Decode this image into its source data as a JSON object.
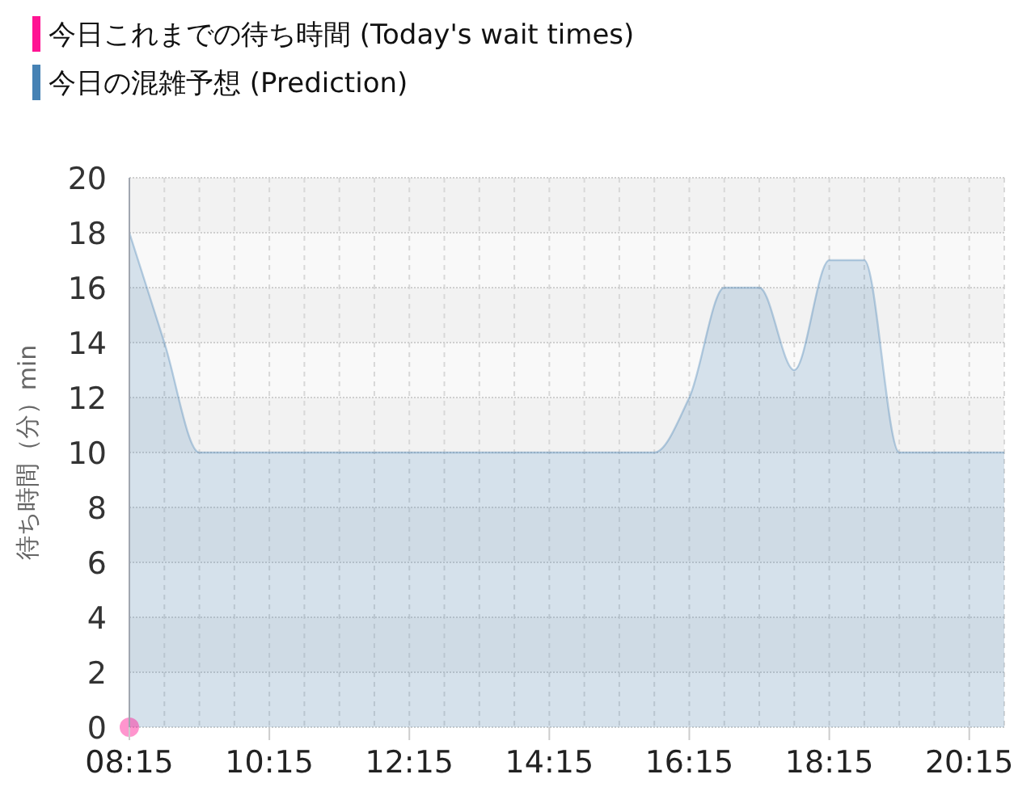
{
  "chart_data": {
    "type": "area",
    "ylabel": "待ち時間（分）min",
    "legend": "top left",
    "grid": true,
    "xlim": [
      8.25,
      20.75
    ],
    "ylim": [
      0,
      20
    ],
    "xticks": [
      {
        "value": 8.25,
        "label": "08:15"
      },
      {
        "value": 10.25,
        "label": "10:15"
      },
      {
        "value": 12.25,
        "label": "12:15"
      },
      {
        "value": 14.25,
        "label": "14:15"
      },
      {
        "value": 16.25,
        "label": "16:15"
      },
      {
        "value": 18.25,
        "label": "18:15"
      },
      {
        "value": 20.25,
        "label": "20:15"
      }
    ],
    "yticks": [
      0,
      2,
      4,
      6,
      8,
      10,
      12,
      14,
      16,
      18,
      20
    ],
    "series": [
      {
        "name": "今日これまでの待ち時間 (Today's wait times)",
        "type": "scatter",
        "marker": "circle",
        "color": "#ff1493",
        "x": [
          8.25
        ],
        "values": [
          0
        ]
      },
      {
        "name": "今日の混雑予想 (Prediction)",
        "color": "#4682b4",
        "x": [
          8.25,
          8.75,
          9.25,
          9.75,
          10.25,
          10.75,
          11.25,
          11.75,
          12.25,
          12.75,
          13.25,
          13.75,
          14.25,
          14.75,
          15.25,
          15.75,
          16.25,
          16.75,
          17.25,
          17.75,
          18.25,
          18.75,
          19.25,
          19.75,
          20.25,
          20.75
        ],
        "values": [
          18,
          14,
          10,
          10,
          10,
          10,
          10,
          10,
          10,
          10,
          10,
          10,
          10,
          10,
          10,
          10,
          12,
          16,
          16,
          13,
          17,
          17,
          10,
          10,
          10,
          10
        ]
      }
    ]
  }
}
